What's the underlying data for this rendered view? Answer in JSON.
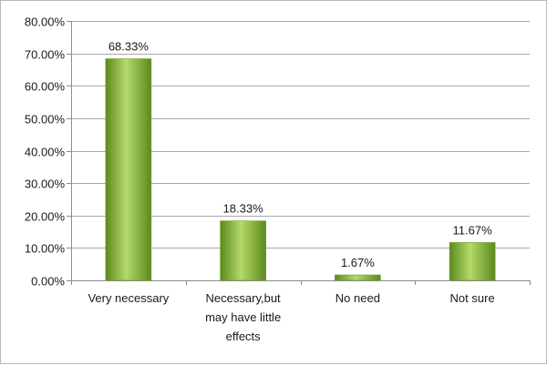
{
  "chart_data": {
    "type": "bar",
    "categories": [
      "Very necessary",
      "Necessary,but may have little effects",
      "No need",
      "Not sure"
    ],
    "category_lines": [
      [
        "Very necessary"
      ],
      [
        "Necessary,but",
        "may have little",
        "effects"
      ],
      [
        "No need"
      ],
      [
        "Not sure"
      ]
    ],
    "values": [
      68.33,
      18.33,
      1.67,
      11.67
    ],
    "value_labels": [
      "68.33%",
      "18.33%",
      "1.67%",
      "11.67%"
    ],
    "ylim": [
      0,
      80
    ],
    "yticks": [
      0,
      10,
      20,
      30,
      40,
      50,
      60,
      70,
      80
    ],
    "ytick_labels": [
      "0.00%",
      "10.00%",
      "20.00%",
      "30.00%",
      "40.00%",
      "50.00%",
      "60.00%",
      "70.00%",
      "80.00%"
    ],
    "grid": true,
    "legend": "none",
    "colors": {
      "bar_light": "#b5d86a",
      "bar_mid": "#8cbd3c",
      "bar_dark": "#5c8a1c",
      "grid": "#a8a8a8",
      "axis": "#8c8c8c"
    }
  }
}
